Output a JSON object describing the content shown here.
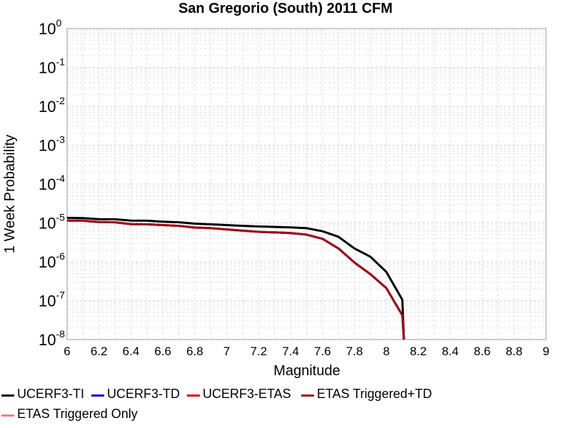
{
  "chart_data": {
    "type": "line",
    "title": "San Gregorio (South) 2011 CFM",
    "xlabel": "Magnitude",
    "ylabel": "1 Week Probability",
    "xlim": [
      6,
      9
    ],
    "ylim": [
      1e-08,
      1
    ],
    "yscale": "log",
    "grid": true,
    "x_ticks": [
      "6",
      "6.2",
      "6.4",
      "6.6",
      "6.8",
      "7",
      "7.2",
      "7.4",
      "7.6",
      "7.8",
      "8",
      "8.2",
      "8.4",
      "8.6",
      "8.8",
      "9"
    ],
    "y_ticks": [
      {
        "base": "10",
        "exp": "0"
      },
      {
        "base": "10",
        "exp": "-1"
      },
      {
        "base": "10",
        "exp": "-2"
      },
      {
        "base": "10",
        "exp": "-3"
      },
      {
        "base": "10",
        "exp": "-4"
      },
      {
        "base": "10",
        "exp": "-5"
      },
      {
        "base": "10",
        "exp": "-6"
      },
      {
        "base": "10",
        "exp": "-7"
      },
      {
        "base": "10",
        "exp": "-8"
      }
    ],
    "legend_position": "bottom",
    "series": [
      {
        "name": "UCERF3-TI",
        "color": "#000000",
        "x": [
          6.0,
          6.1,
          6.2,
          6.3,
          6.4,
          6.5,
          6.6,
          6.7,
          6.8,
          6.9,
          7.0,
          7.1,
          7.2,
          7.3,
          7.4,
          7.5,
          7.6,
          7.7,
          7.8,
          7.9,
          8.0,
          8.1,
          8.11
        ],
        "y": [
          1.35e-05,
          1.33e-05,
          1.25e-05,
          1.24e-05,
          1.15e-05,
          1.14e-05,
          1.08e-05,
          1.04e-05,
          9.6e-06,
          9.2e-06,
          8.8e-06,
          8.4e-06,
          8.1e-06,
          7.9e-06,
          7.7e-06,
          7.3e-06,
          6.1e-06,
          4.4e-06,
          2.2e-06,
          1.35e-06,
          5.5e-07,
          1.05e-07,
          6e-09
        ]
      },
      {
        "name": "UCERF3-TD",
        "color": "#0000cc",
        "x": [
          6.0,
          6.1,
          6.2,
          6.3,
          6.4,
          6.5,
          6.6,
          6.7,
          6.8,
          6.9,
          7.0,
          7.1,
          7.2,
          7.3,
          7.4,
          7.5,
          7.6,
          7.7,
          7.8,
          7.9,
          8.0,
          8.1,
          8.11
        ],
        "y": [
          1.15e-05,
          1.14e-05,
          1.05e-05,
          1.04e-05,
          9.3e-06,
          9.2e-06,
          8.8e-06,
          8.4e-06,
          7.6e-06,
          7.3e-06,
          6.8e-06,
          6.3e-06,
          5.9e-06,
          5.7e-06,
          5.5e-06,
          5e-06,
          3.9e-06,
          2.2e-06,
          9.6e-07,
          4.8e-07,
          2.1e-07,
          4.2e-08,
          6e-09
        ]
      },
      {
        "name": "UCERF3-ETAS",
        "color": "#e00000",
        "x": [
          6.0,
          6.1,
          6.2,
          6.3,
          6.4,
          6.5,
          6.6,
          6.7,
          6.8,
          6.9,
          7.0,
          7.1,
          7.2,
          7.3,
          7.4,
          7.5,
          7.6,
          7.7,
          7.8,
          7.9,
          8.0,
          8.1,
          8.11
        ],
        "y": [
          1.15e-05,
          1.14e-05,
          1.05e-05,
          1.04e-05,
          9.3e-06,
          9.2e-06,
          8.8e-06,
          8.4e-06,
          7.6e-06,
          7.3e-06,
          6.8e-06,
          6.3e-06,
          5.9e-06,
          5.7e-06,
          5.5e-06,
          5e-06,
          3.9e-06,
          2.2e-06,
          9.6e-07,
          4.8e-07,
          2.1e-07,
          4.2e-08,
          6e-09
        ]
      },
      {
        "name": "ETAS Triggered+TD",
        "color": "#9b0f17",
        "x": [
          6.0,
          6.1,
          6.2,
          6.3,
          6.4,
          6.5,
          6.6,
          6.7,
          6.8,
          6.9,
          7.0,
          7.1,
          7.2,
          7.3,
          7.4,
          7.5,
          7.6,
          7.7,
          7.8,
          7.9,
          8.0,
          8.1,
          8.11
        ],
        "y": [
          1.15e-05,
          1.14e-05,
          1.05e-05,
          1.04e-05,
          9.3e-06,
          9.2e-06,
          8.8e-06,
          8.4e-06,
          7.6e-06,
          7.3e-06,
          6.8e-06,
          6.3e-06,
          5.9e-06,
          5.7e-06,
          5.5e-06,
          5e-06,
          3.9e-06,
          2.2e-06,
          9.6e-07,
          4.8e-07,
          2.1e-07,
          4.2e-08,
          6e-09
        ]
      },
      {
        "name": "ETAS Triggered Only",
        "color": "#f08080",
        "x": [],
        "y": []
      }
    ]
  }
}
